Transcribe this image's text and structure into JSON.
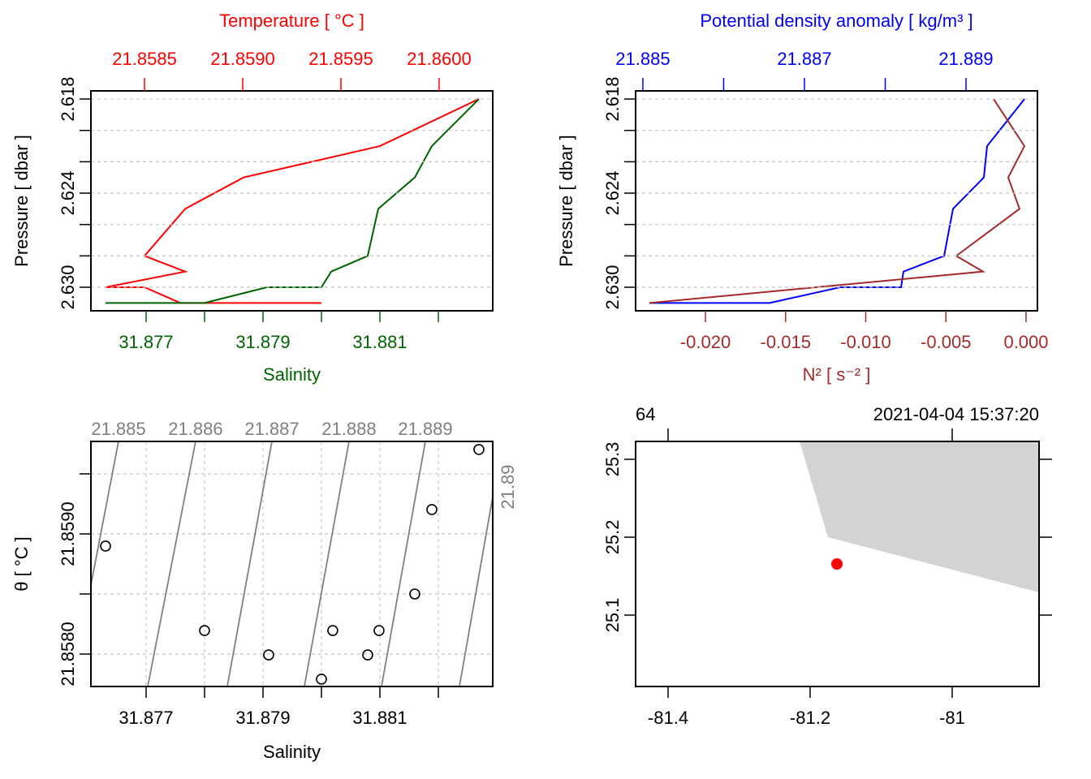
{
  "chart_data": [
    {
      "type": "profile",
      "ylabel": "Pressure [ dbar ]",
      "ylim": [
        2.6315,
        2.61748
      ],
      "yticks": [
        2.618,
        2.624,
        {
          "value": 2.63,
          "label": "2.630"
        }
      ],
      "minor_yticks": [
        2.62,
        2.622,
        2.626,
        2.628
      ],
      "grid": "y",
      "xlim": [
        31.876056,
        31.882931
      ],
      "xticks": [
        31.877,
        31.879,
        31.881
      ],
      "minor_xticks": [
        31.878,
        31.88,
        31.882
      ],
      "x2lim": [
        21.858227,
        21.860273
      ],
      "x2ticks": [
        21.8585,
        {
          "value": 21.859,
          "label": "21.8590"
        },
        21.8595,
        {
          "value": 21.86,
          "label": "21.8600"
        }
      ],
      "series": [
        {
          "name": "Temperature [ °C ]",
          "color": "#ff0000",
          "axis": "x2",
          "x": [
            21.860202,
            21.859698,
            21.859004,
            21.858707,
            21.8585,
            21.858707,
            21.858302,
            21.8585,
            21.858682,
            21.859401
          ],
          "y": [
            2.618,
            2.621,
            2.623,
            2.625,
            2.628,
            2.629,
            2.63,
            2.63,
            2.631,
            2.631
          ]
        },
        {
          "name": "Salinity",
          "color": "#006400",
          "axis": "x",
          "x": [
            31.882694,
            31.881889,
            31.881597,
            31.880972,
            31.880792,
            31.880167,
            31.88,
            31.879069,
            31.878,
            31.876306
          ],
          "y": [
            2.618,
            2.621,
            2.623,
            2.625,
            2.628,
            2.629,
            2.63,
            2.63,
            2.631,
            2.631
          ]
        }
      ]
    },
    {
      "type": "profile",
      "ylabel": "Pressure [ dbar ]",
      "ylim": [
        2.6315,
        2.61748
      ],
      "yticks": [
        2.618,
        2.624,
        {
          "value": 2.63,
          "label": "2.630"
        }
      ],
      "minor_yticks": [
        2.62,
        2.622,
        2.626,
        2.628
      ],
      "grid": "y",
      "xlim": [
        -0.024354,
        0.000709
      ],
      "xticks": [
        {
          "value": -0.02,
          "label": "-0.020"
        },
        {
          "value": -0.015,
          "label": "-0.015"
        },
        {
          "value": -0.01,
          "label": "-0.010"
        },
        {
          "value": -0.005,
          "label": "-0.005"
        },
        {
          "value": 0,
          "label": "0.000"
        }
      ],
      "x2lim": [
        21.88491,
        21.889884
      ],
      "x2ticks": [
        21.885,
        21.887,
        21.889
      ],
      "minor_x2ticks": [
        21.886,
        21.888
      ],
      "series": [
        {
          "name": "Potential density anomaly [ kg/m³ ]",
          "color": "#0000ff",
          "axis": "x2",
          "x": [
            21.889724,
            21.889261,
            21.889221,
            21.888839,
            21.888729,
            21.888226,
            21.888196,
            21.887442,
            21.886568,
            21.88508
          ],
          "y": [
            2.618,
            2.621,
            2.623,
            2.625,
            2.628,
            2.629,
            2.63,
            2.63,
            2.631,
            2.631
          ]
        },
        {
          "name": "N² [ s⁻² ]",
          "color": "#a52a2a",
          "axis": "x",
          "x": [
            -0.002025,
            -0.000101,
            -0.001114,
            -0.000405,
            -0.004354,
            -0.002684,
            -0.023494
          ],
          "y": [
            2.618,
            2.621,
            2.623,
            2.625,
            2.628,
            2.629,
            2.631
          ]
        }
      ]
    },
    {
      "type": "ts",
      "xlabel": "Salinity",
      "ylabel": "θ [ °C ]",
      "xlim": [
        31.876056,
        31.882931
      ],
      "xticks": [
        31.877,
        31.879,
        31.881
      ],
      "minor_xticks": [
        31.878,
        31.88,
        31.882
      ],
      "ylim": [
        21.85773,
        21.85977
      ],
      "yticks": [
        {
          "value": 21.858,
          "label": "21.8580"
        },
        {
          "value": 21.859,
          "label": "21.8590"
        }
      ],
      "minor_yticks": [
        21.8585,
        21.8595
      ],
      "grid": "xy",
      "points": {
        "x": [
          31.882694,
          31.881889,
          31.876306,
          31.881597,
          31.878,
          31.880194,
          31.880986,
          31.879097,
          31.880792,
          31.88
        ],
        "y": [
          21.859703,
          21.859203,
          21.858899,
          21.8585,
          21.858196,
          21.858196,
          21.858196,
          21.857993,
          21.857993,
          21.857791
        ],
        "color": "#000000"
      },
      "contours": {
        "levels": [
          21.885,
          21.886,
          21.887,
          21.888,
          21.889,
          21.89
        ],
        "x_bottom": [
          31.875722,
          31.877028,
          31.878389,
          31.879708,
          31.881028,
          31.882361
        ],
        "x_top": [
          31.876528,
          31.877847,
          31.879153,
          31.880472,
          31.881778,
          31.883097
        ],
        "color": "#808080"
      }
    },
    {
      "type": "map",
      "xlim": [
        -81.445714,
        -80.877714
      ],
      "xticks": [
        -81.4,
        -81.2,
        -81
      ],
      "ylim": [
        25.008333,
        25.322917
      ],
      "yticks": [
        25.1,
        25.2,
        25.3
      ],
      "top_labels": [
        "64",
        "2021-04-04 15:37:20"
      ],
      "land": {
        "lon": [
          -81.214857,
          -81.174857,
          -80.877714,
          -80.877714
        ],
        "lat": [
          25.322917,
          25.2,
          25.129167,
          25.322917
        ],
        "color": "#d3d3d3"
      },
      "station": {
        "lon": -81.162286,
        "lat": 25.165625,
        "color": "#ff0000"
      }
    }
  ]
}
